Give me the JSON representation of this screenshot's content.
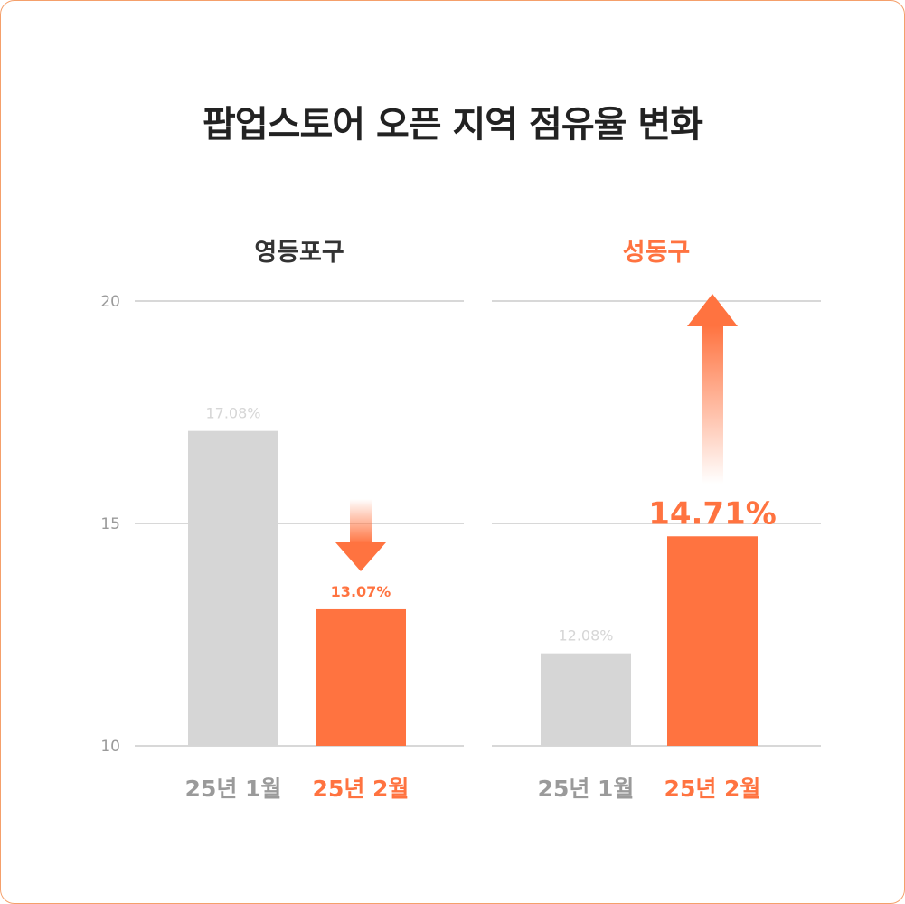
{
  "title": "팝업스토어 오픈 지역 점유율 변화",
  "colors": {
    "accent": "#ff7340",
    "neutral": "#d6d6d6",
    "neutral_text": "#9a9a9a",
    "dark_text": "#333333",
    "grid": "#cccccc",
    "border": "#f5a06b"
  },
  "chart_data": [
    {
      "type": "bar",
      "title": "영등포구",
      "title_highlight": false,
      "categories": [
        "25년 1월",
        "25년 2월"
      ],
      "values": [
        17.08,
        13.07
      ],
      "labels": [
        "17.08%",
        "13.07%"
      ],
      "highlight": [
        false,
        true
      ],
      "ylim": [
        10,
        20
      ],
      "yticks": [
        10,
        15,
        20
      ],
      "ytick_labels": [
        "10",
        "15",
        "20"
      ],
      "grid": true,
      "trend_arrow": "down",
      "trend_on": 1
    },
    {
      "type": "bar",
      "title": "성동구",
      "title_highlight": true,
      "categories": [
        "25년 1월",
        "25년 2월"
      ],
      "values": [
        12.08,
        14.71
      ],
      "labels": [
        "12.08%",
        "14.71%"
      ],
      "highlight": [
        false,
        true
      ],
      "ylim": [
        10,
        20
      ],
      "yticks": [
        10,
        15,
        20
      ],
      "grid": true,
      "trend_arrow": "up",
      "trend_on": 1
    }
  ]
}
